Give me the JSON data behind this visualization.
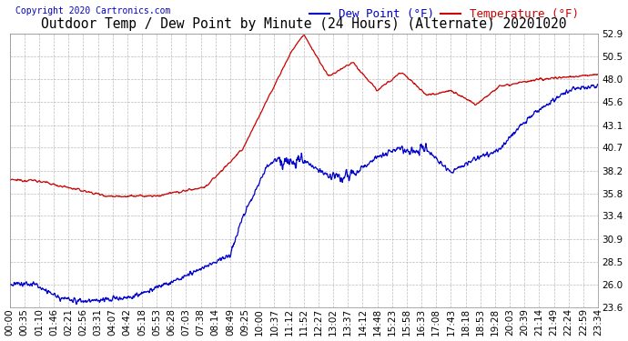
{
  "title": "Outdoor Temp / Dew Point by Minute (24 Hours) (Alternate) 20201020",
  "copyright": "Copyright 2020 Cartronics.com",
  "legend_dewpoint": "Dew Point (°F)",
  "legend_temp": "Temperature (°F)",
  "yticks": [
    23.6,
    26.0,
    28.5,
    30.9,
    33.4,
    35.8,
    38.2,
    40.7,
    43.1,
    45.6,
    48.0,
    50.5,
    52.9
  ],
  "ymin": 23.6,
  "ymax": 52.9,
  "xtick_labels": [
    "00:00",
    "00:35",
    "01:10",
    "01:46",
    "02:21",
    "02:56",
    "03:31",
    "04:07",
    "04:42",
    "05:18",
    "05:53",
    "06:28",
    "07:03",
    "07:38",
    "08:14",
    "08:49",
    "09:25",
    "10:00",
    "10:37",
    "11:12",
    "11:52",
    "12:27",
    "13:02",
    "13:37",
    "14:12",
    "14:48",
    "15:23",
    "15:58",
    "16:33",
    "17:08",
    "17:43",
    "18:18",
    "18:53",
    "19:28",
    "20:03",
    "20:39",
    "21:14",
    "21:49",
    "22:24",
    "22:59",
    "23:34"
  ],
  "bg_color": "#ffffff",
  "grid_color": "#aaaaaa",
  "temp_color": "#cc0000",
  "dew_color": "#0000cc",
  "title_fontsize": 10.5,
  "axis_fontsize": 7.5,
  "legend_fontsize": 9,
  "copyright_color": "#0000cc"
}
